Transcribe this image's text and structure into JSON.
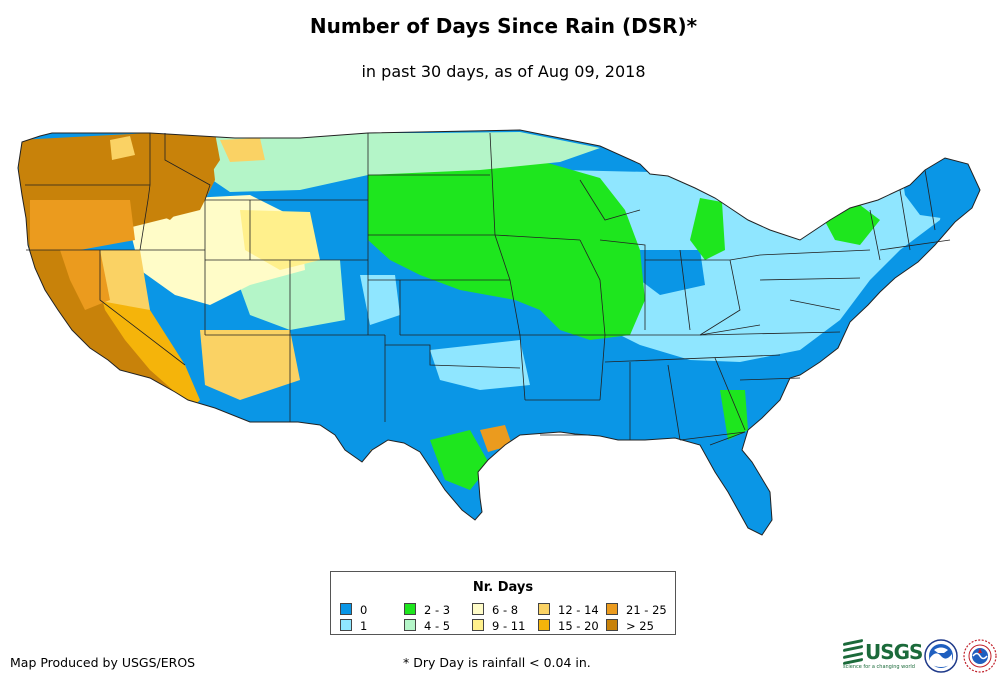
{
  "title": "Number of Days Since Rain (DSR)*",
  "subtitle": "in past 30 days, as of Aug 09, 2018",
  "legend": {
    "title": "Nr. Days",
    "items": [
      {
        "label": "0",
        "color": "#0a96e6"
      },
      {
        "label": "1",
        "color": "#8fe6ff"
      },
      {
        "label": "2 - 3",
        "color": "#1ee61e"
      },
      {
        "label": "4 - 5",
        "color": "#b4f5c8"
      },
      {
        "label": "6 - 8",
        "color": "#fffcc8"
      },
      {
        "label": "9 - 11",
        "color": "#fff08c"
      },
      {
        "label": "12 - 14",
        "color": "#fad264"
      },
      {
        "label": "15 - 20",
        "color": "#f5b40a"
      },
      {
        "label": "21 - 25",
        "color": "#eb9b1e"
      },
      {
        "label": "> 25",
        "color": "#c8820a"
      }
    ]
  },
  "credit": "Map Produced by USGS/EROS",
  "footnote": "* Dry Day is rainfall < 0.04 in.",
  "logos": {
    "usgs": {
      "text": "USGS",
      "tagline": "science for a changing world"
    },
    "noaa": {
      "text": "NOAA"
    },
    "nws": {
      "text": "NWS"
    }
  }
}
